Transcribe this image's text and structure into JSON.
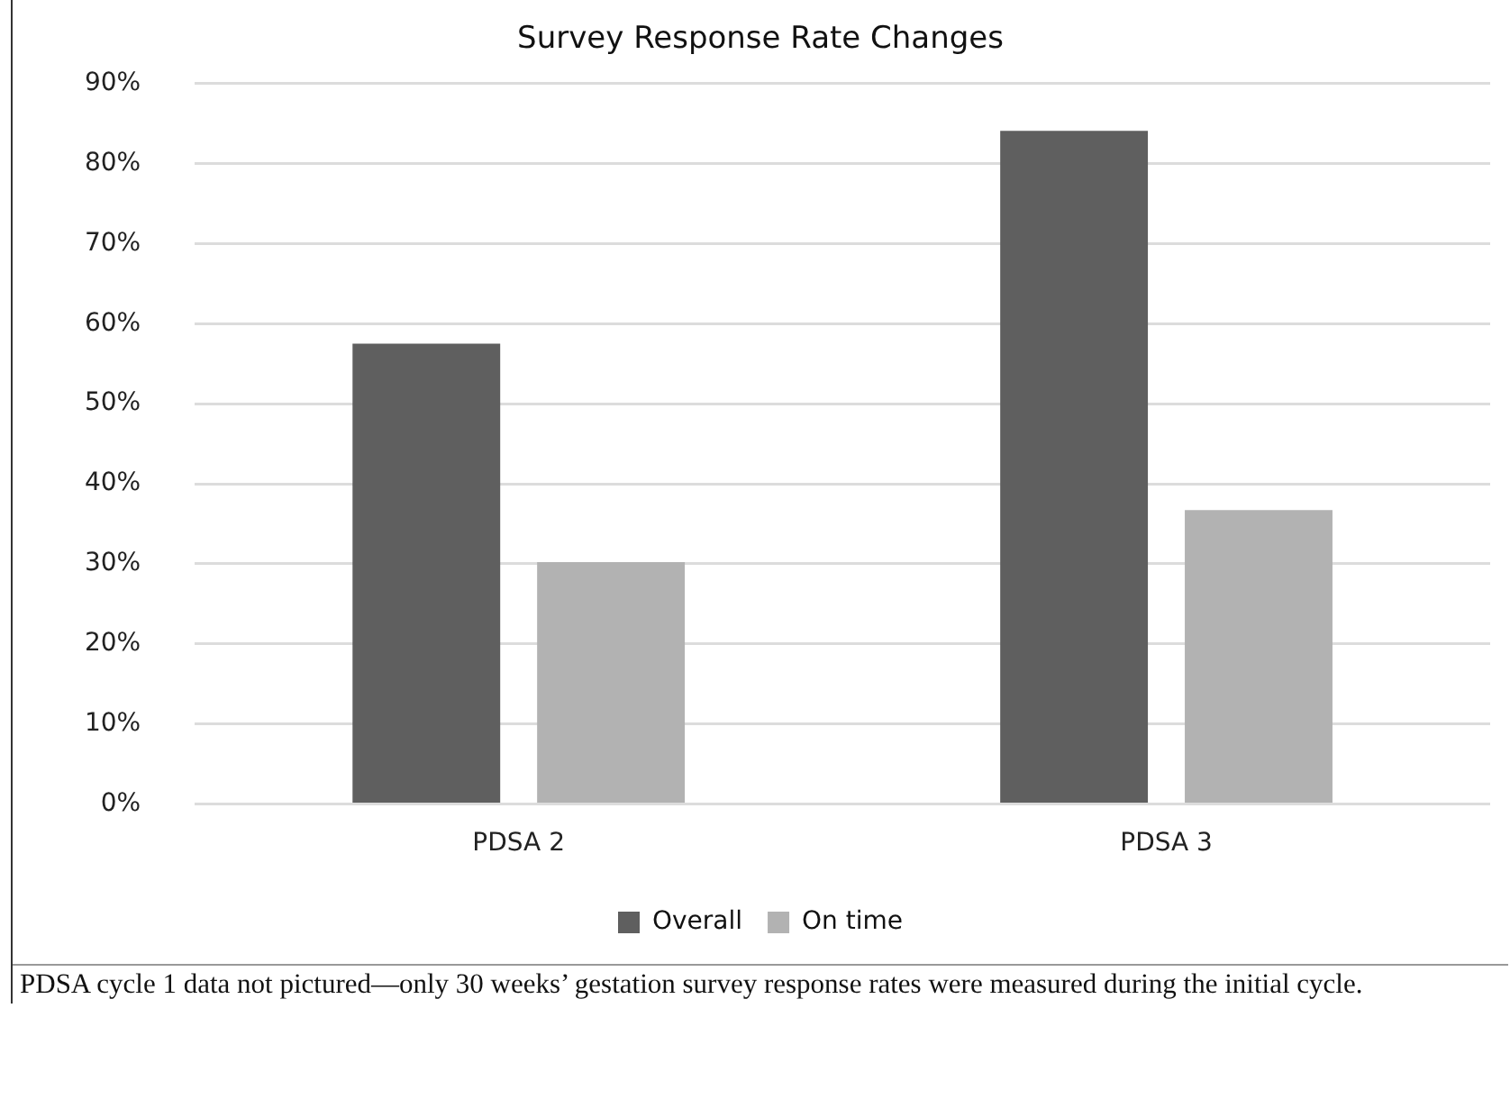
{
  "chart_data": {
    "type": "bar",
    "title": "Survey Response Rate Changes",
    "categories": [
      "PDSA 2",
      "PDSA 3"
    ],
    "series": [
      {
        "name": "Overall",
        "color": "#5f5f5f",
        "values": [
          57.5,
          84.1
        ]
      },
      {
        "name": "On time",
        "color": "#b2b2b2",
        "values": [
          30.2,
          36.7
        ]
      }
    ],
    "ylim": [
      0,
      90
    ],
    "yticks": [
      {
        "value": 0,
        "label": "0%"
      },
      {
        "value": 10,
        "label": "10%"
      },
      {
        "value": 20,
        "label": "20%"
      },
      {
        "value": 30,
        "label": "30%"
      },
      {
        "value": 40,
        "label": "40%"
      },
      {
        "value": 50,
        "label": "50%"
      },
      {
        "value": 60,
        "label": "60%"
      },
      {
        "value": 70,
        "label": "70%"
      },
      {
        "value": 80,
        "label": "80%"
      },
      {
        "value": 90,
        "label": "90%"
      }
    ],
    "grid": "y",
    "legend": "bottom",
    "annotations": [
      "PDSA cycle 1 data not pictured—only 30 weeks’ gestation survey response rates were measured during the initial cycle."
    ]
  }
}
